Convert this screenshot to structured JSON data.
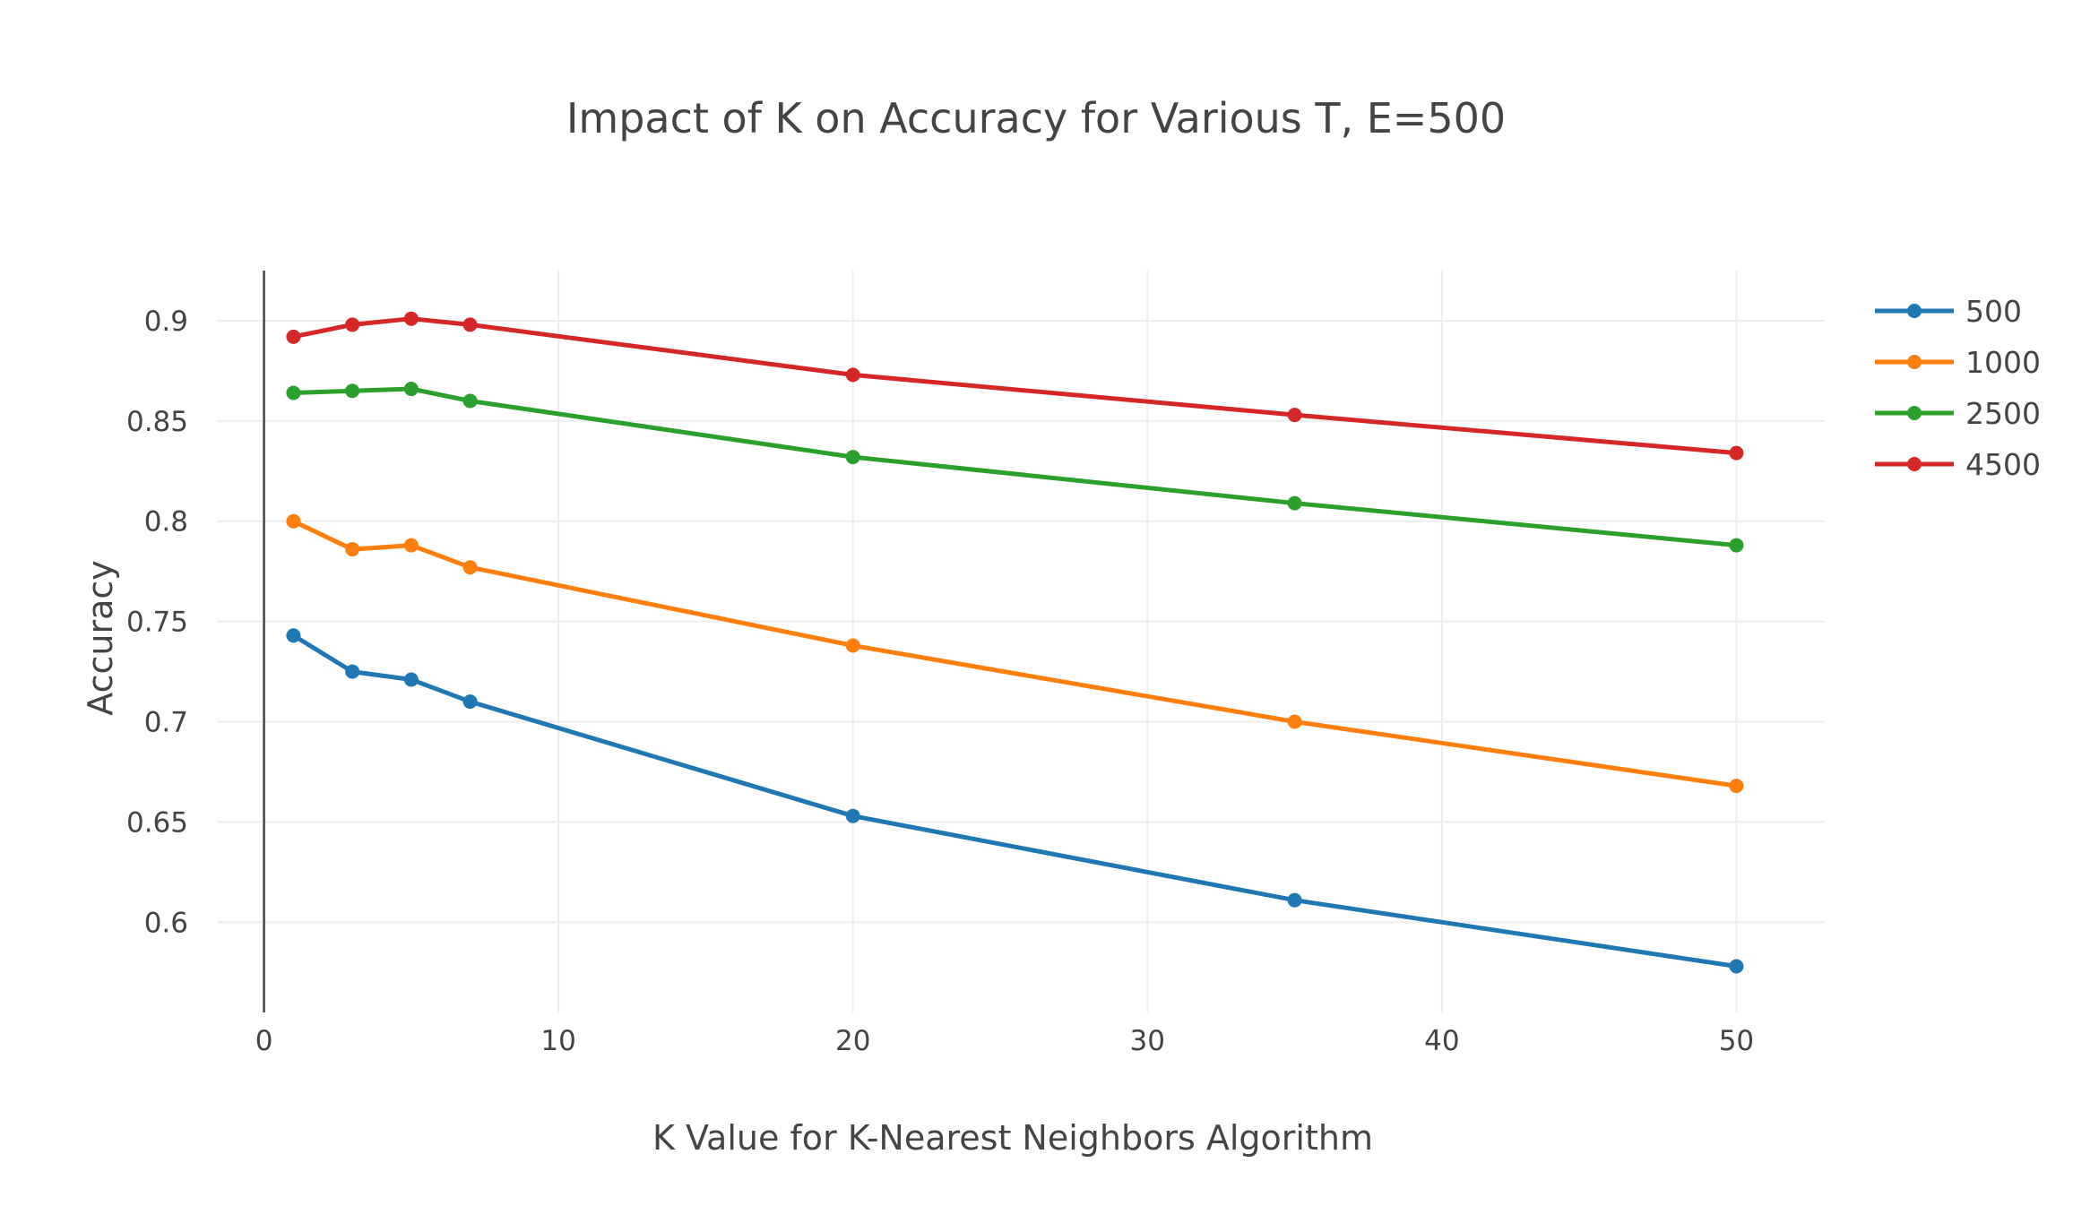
{
  "chart_data": {
    "type": "line",
    "title": "Impact of K on Accuracy for Various T, E=500",
    "xlabel": "K Value for K-Nearest Neighbors Algorithm",
    "ylabel": "Accuracy",
    "x": [
      1,
      3,
      5,
      7,
      20,
      35,
      50
    ],
    "xlim": [
      -1.6,
      53
    ],
    "ylim": [
      0.555,
      0.925
    ],
    "xticks": [
      0,
      10,
      20,
      30,
      40,
      50
    ],
    "yticks": [
      0.6,
      0.65,
      0.7,
      0.75,
      0.8,
      0.85,
      0.9
    ],
    "ytick_labels": [
      "0.6",
      "0.65",
      "0.7",
      "0.75",
      "0.8",
      "0.85",
      "0.9"
    ],
    "grid": true,
    "legend_position": "top-right",
    "series": [
      {
        "name": "500",
        "color": "#1f77b4",
        "values": [
          0.743,
          0.725,
          0.721,
          0.71,
          0.653,
          0.611,
          0.578
        ]
      },
      {
        "name": "1000",
        "color": "#ff7f0e",
        "values": [
          0.8,
          0.786,
          0.788,
          0.777,
          0.738,
          0.7,
          0.668
        ]
      },
      {
        "name": "2500",
        "color": "#2ca02c",
        "values": [
          0.864,
          0.865,
          0.866,
          0.86,
          0.832,
          0.809,
          0.788
        ]
      },
      {
        "name": "4500",
        "color": "#d62728",
        "values": [
          0.892,
          0.898,
          0.901,
          0.898,
          0.873,
          0.853,
          0.834
        ]
      }
    ]
  }
}
